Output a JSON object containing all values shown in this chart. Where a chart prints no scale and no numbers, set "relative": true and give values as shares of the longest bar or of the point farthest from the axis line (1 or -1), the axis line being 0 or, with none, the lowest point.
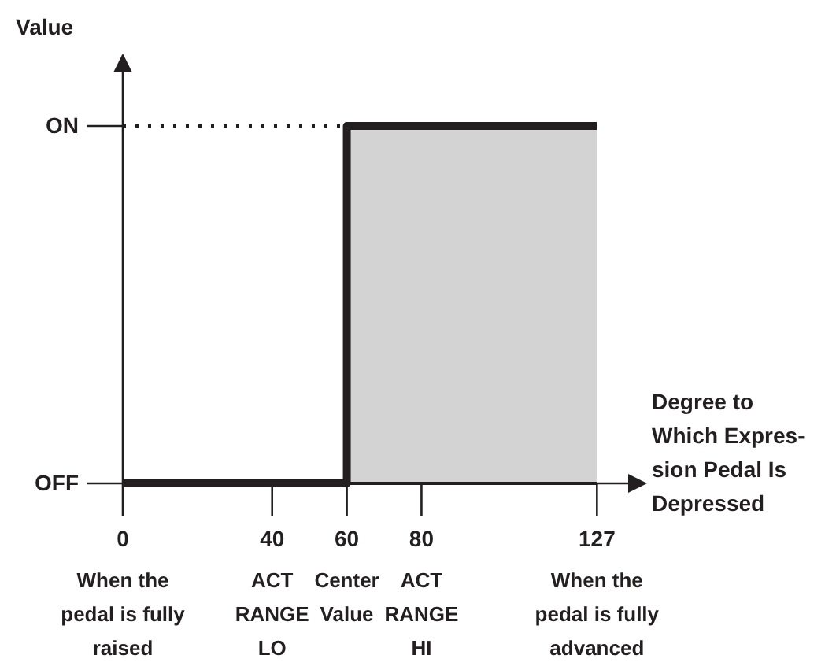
{
  "chart_data": {
    "type": "step",
    "relative": true,
    "ylabel": "Value",
    "xlabel": "Degree to\nWhich Expres-\nsion Pedal Is\nDepressed",
    "xlim": [
      0,
      140
    ],
    "xticks": [
      0,
      40,
      60,
      80,
      127
    ],
    "series": [
      {
        "type": "area",
        "color": "#d3d3d3",
        "x": [
          60,
          127
        ],
        "values": [
          1,
          1
        ]
      },
      {
        "color": "#231f20",
        "x": [
          0,
          60,
          127
        ],
        "values": [
          0,
          1,
          1
        ]
      }
    ],
    "ref_lines": [
      {
        "axis": "y",
        "value": 0,
        "label": "OFF",
        "color": "#231f20"
      },
      {
        "axis": "y",
        "value": 1,
        "label": "ON",
        "color": "#231f20",
        "line_style": "dotted"
      }
    ],
    "annotations": [
      "When the\npedal is fully\nraised",
      "ACT\nRANGE\nLO",
      "Center\nValue",
      "ACT\nRANGE\nHI",
      "When the\npedal is fully\nadvanced"
    ]
  }
}
